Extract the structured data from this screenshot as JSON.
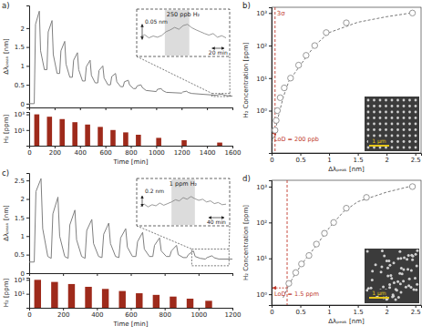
{
  "chart_data": [
    {
      "type": "line",
      "label": "a)",
      "x": [
        0,
        40,
        50,
        80,
        90,
        120,
        140,
        150,
        180,
        190,
        220,
        240,
        250,
        280,
        290,
        320,
        340,
        350,
        380,
        390,
        420,
        440,
        450,
        480,
        490,
        520,
        540,
        550,
        580,
        590,
        620,
        640,
        650,
        680,
        690,
        720,
        740,
        750,
        780,
        790,
        820,
        840,
        850,
        880,
        890,
        920,
        1000,
        1010,
        1040,
        1050,
        1080,
        1200,
        1210,
        1240,
        1250,
        1280,
        1480,
        1490,
        1520,
        1530,
        1560,
        1600
      ],
      "values": [
        0,
        0,
        2.1,
        2.45,
        1.4,
        0.9,
        0.9,
        1.9,
        2.2,
        1.3,
        0.8,
        0.8,
        1.4,
        1.65,
        1.05,
        0.7,
        0.7,
        1.15,
        1.35,
        0.9,
        0.6,
        0.6,
        0.98,
        1.15,
        0.75,
        0.55,
        0.55,
        0.88,
        1.0,
        0.68,
        0.5,
        0.5,
        0.72,
        0.8,
        0.58,
        0.45,
        0.45,
        0.58,
        0.62,
        0.5,
        0.4,
        0.4,
        0.47,
        0.5,
        0.43,
        0.35,
        0.32,
        0.38,
        0.4,
        0.35,
        0.3,
        0.28,
        0.31,
        0.33,
        0.3,
        0.27,
        0.22,
        0.24,
        0.25,
        0.23,
        0.21,
        0.2
      ],
      "color": "#7f7f7f",
      "xlim": [
        0,
        1600
      ],
      "ylim": [
        -0.1,
        2.6
      ],
      "xticks": [
        0,
        200,
        400,
        600,
        800,
        1000,
        1200,
        1400,
        1600
      ],
      "yticks": [
        0,
        0.5,
        1,
        1.5,
        2
      ],
      "tick_labels": "y",
      "y_label": "Δλₚₑₐₖ [nm]",
      "inset": {
        "type": "line",
        "title": "250 ppb H₂",
        "x": [
          1440,
          1447,
          1454,
          1461,
          1468,
          1475,
          1482,
          1489,
          1496,
          1503,
          1510,
          1517,
          1524,
          1531,
          1538,
          1545,
          1552,
          1559,
          1566,
          1573,
          1580
        ],
        "values": [
          0.215,
          0.222,
          0.212,
          0.218,
          0.214,
          0.22,
          0.232,
          0.238,
          0.246,
          0.24,
          0.252,
          0.256,
          0.245,
          0.238,
          0.232,
          0.226,
          0.221,
          0.226,
          0.214,
          0.219,
          0.212
        ],
        "color": "#7f7f7f",
        "xlim": [
          1440,
          1580
        ],
        "ylim": [
          0.19,
          0.27
        ],
        "tick_labels": false,
        "exposure": [
          1480,
          1520
        ],
        "scale_bars": [
          {
            "direction": "y",
            "value": 0.05,
            "label": "0.05 nm"
          },
          {
            "direction": "x",
            "value": 20,
            "label": "20 min"
          }
        ]
      }
    },
    {
      "type": "bar",
      "x": [
        40,
        140,
        240,
        340,
        440,
        540,
        640,
        740,
        840,
        1000,
        1200,
        1480
      ],
      "x_end": [
        80,
        180,
        280,
        380,
        480,
        580,
        680,
        780,
        880,
        1040,
        1240,
        1520
      ],
      "values": [
        1000,
        500,
        250,
        100,
        50,
        25,
        10,
        5,
        2.5,
        1,
        0.5,
        0.25
      ],
      "color": "#9e2a1b",
      "xlim": [
        0,
        1600
      ],
      "ylim": [
        0.1,
        2000
      ],
      "log": "y",
      "xticks": [
        0,
        200,
        400,
        600,
        800,
        1000,
        1200,
        1400,
        1600
      ],
      "yticks": [
        {
          "value": 10,
          "label": "10¹"
        },
        {
          "value": 1000,
          "label": "10³"
        }
      ],
      "x_label": "Time [min]",
      "y_label": "H₂ [ppm]"
    },
    {
      "type": "scatter",
      "label": "b)",
      "x": [
        0.06,
        0.08,
        0.1,
        0.15,
        0.22,
        0.33,
        0.47,
        0.6,
        0.75,
        0.95,
        1.3,
        2.45
      ],
      "values": [
        0.25,
        0.5,
        1,
        2.5,
        5,
        10,
        25,
        50,
        100,
        250,
        500,
        1000
      ],
      "color": "#8c8c8c",
      "marker": "circle",
      "xlim": [
        0,
        2.6
      ],
      "ylim": [
        0.05,
        1500
      ],
      "log": "y",
      "xticks": [
        0,
        0.5,
        1,
        1.5,
        2,
        2.5
      ],
      "yticks": [
        {
          "value": 1,
          "label": "10⁰"
        },
        {
          "value": 10,
          "label": "10¹"
        },
        {
          "value": 100,
          "label": "10²"
        },
        {
          "value": 1000,
          "label": "10³"
        }
      ],
      "x_label": "Δλₚₑₐₖ [nm]",
      "y_label": "H₂ Concentration [ppm]",
      "fit": {
        "x": [
          0,
          0.05,
          0.1,
          0.2,
          0.3,
          0.5,
          0.75,
          1,
          1.5,
          2,
          2.5
        ],
        "values": [
          0.1,
          0.18,
          0.5,
          2.5,
          8,
          25,
          100,
          250,
          520,
          770,
          1050
        ],
        "line_style": "dashed",
        "color": "#555555"
      },
      "threshold": {
        "value": 0.06,
        "label": "3σ",
        "color": "#c0392b"
      },
      "lod": {
        "value": 0.2,
        "label": "LoD = 200 ppb",
        "color": "#c0392b"
      },
      "image": {
        "label": "1 µm",
        "color": "#e6c619"
      }
    },
    {
      "type": "line",
      "label": "c)",
      "x": [
        0,
        30,
        40,
        70,
        80,
        110,
        130,
        140,
        170,
        180,
        210,
        230,
        240,
        270,
        280,
        310,
        330,
        340,
        370,
        380,
        410,
        430,
        440,
        470,
        480,
        510,
        530,
        540,
        570,
        580,
        610,
        630,
        640,
        670,
        680,
        710,
        730,
        740,
        770,
        780,
        810,
        830,
        840,
        870,
        880,
        910,
        930,
        940,
        970,
        980,
        1010,
        1040,
        1050,
        1080,
        1090,
        1120,
        1200
      ],
      "values": [
        0.3,
        0.3,
        2.2,
        2.55,
        1.2,
        0.45,
        0.4,
        1.6,
        2.05,
        1.0,
        0.45,
        0.4,
        1.3,
        1.7,
        0.9,
        0.45,
        0.4,
        1.15,
        1.45,
        0.8,
        0.45,
        0.42,
        1.05,
        1.35,
        0.8,
        0.45,
        0.42,
        0.95,
        1.2,
        0.7,
        0.45,
        0.45,
        0.85,
        1.1,
        0.65,
        0.45,
        0.45,
        0.75,
        0.95,
        0.6,
        0.45,
        0.45,
        0.6,
        0.75,
        0.5,
        0.42,
        0.42,
        0.5,
        0.6,
        0.45,
        0.4,
        0.38,
        0.42,
        0.47,
        0.42,
        0.38,
        0.38
      ],
      "color": "#7f7f7f",
      "xlim": [
        0,
        1200
      ],
      "ylim": [
        0,
        2.7
      ],
      "xticks": [
        0,
        200,
        400,
        600,
        800,
        1000,
        1200
      ],
      "yticks": [
        0,
        0.5,
        1,
        1.5,
        2,
        2.5
      ],
      "tick_labels": "y",
      "y_label": "Δλₚₑₐₖ [nm]",
      "inset": {
        "type": "line",
        "title": "1 ppm H₂",
        "x": [
          960,
          970,
          980,
          990,
          1000,
          1010,
          1020,
          1030,
          1040,
          1050,
          1060,
          1070,
          1080,
          1090,
          1100,
          1110,
          1120,
          1130,
          1140,
          1150,
          1160,
          1170,
          1180
        ],
        "values": [
          0.34,
          0.38,
          0.33,
          0.37,
          0.35,
          0.4,
          0.36,
          0.39,
          0.42,
          0.46,
          0.44,
          0.5,
          0.47,
          0.52,
          0.48,
          0.45,
          0.47,
          0.42,
          0.44,
          0.39,
          0.41,
          0.37,
          0.38
        ],
        "color": "#7f7f7f",
        "xlim": [
          960,
          1180
        ],
        "ylim": [
          0.2,
          0.65
        ],
        "tick_labels": false,
        "exposure": [
          1040,
          1100
        ],
        "scale_bars": [
          {
            "direction": "y",
            "value": 0.2,
            "label": "0.2 nm"
          },
          {
            "direction": "x",
            "value": 40,
            "label": "40 min"
          }
        ]
      }
    },
    {
      "type": "bar",
      "x": [
        30,
        130,
        230,
        330,
        430,
        530,
        630,
        730,
        830,
        930,
        1040
      ],
      "x_end": [
        70,
        170,
        270,
        370,
        470,
        570,
        670,
        770,
        870,
        970,
        1080
      ],
      "values": [
        1000,
        500,
        250,
        100,
        50,
        25,
        12,
        7,
        4,
        2,
        1
      ],
      "color": "#9e2a1b",
      "xlim": [
        0,
        1200
      ],
      "ylim": [
        0.1,
        2000
      ],
      "log": "y",
      "xticks": [
        0,
        200,
        400,
        600,
        800,
        1000,
        1200
      ],
      "yticks": [
        {
          "value": 10,
          "label": "10¹"
        },
        {
          "value": 1000,
          "label": "10³"
        }
      ],
      "x_label": "Time [min]",
      "y_label": "H₂ [ppm]"
    },
    {
      "type": "scatter",
      "label": "d)",
      "x": [
        0.3,
        0.42,
        0.52,
        0.65,
        0.78,
        0.92,
        1.08,
        1.3,
        1.65,
        2.45
      ],
      "values": [
        2,
        4,
        7,
        12,
        25,
        50,
        100,
        250,
        500,
        1000
      ],
      "color": "#8c8c8c",
      "marker": "circle",
      "xlim": [
        0,
        2.6
      ],
      "ylim": [
        0.5,
        1500
      ],
      "log": "y",
      "xticks": [
        0,
        0.5,
        1,
        1.5,
        2,
        2.5
      ],
      "yticks": [
        {
          "value": 1,
          "label": "10⁰"
        },
        {
          "value": 10,
          "label": "10¹"
        },
        {
          "value": 100,
          "label": "10²"
        },
        {
          "value": 1000,
          "label": "10³"
        }
      ],
      "x_label": "Δλₚₑₐₖ [nm]",
      "y_label": "H₂ Concentration [ppm]",
      "fit": {
        "x": [
          0.2,
          0.3,
          0.4,
          0.5,
          0.6,
          0.75,
          1,
          1.25,
          1.5,
          2,
          2.5
        ],
        "values": [
          0.8,
          1.8,
          3.5,
          6,
          10,
          20,
          70,
          200,
          380,
          700,
          1100
        ],
        "line_style": "dashed",
        "color": "#555555"
      },
      "threshold": {
        "value": 0.27,
        "color": "#c0392b"
      },
      "lod": {
        "value": 1.5,
        "label": "LoD = 1.5 ppm",
        "color": "#c0392b"
      },
      "image": {
        "label": "1 µm",
        "color": "#e6c619"
      }
    }
  ]
}
